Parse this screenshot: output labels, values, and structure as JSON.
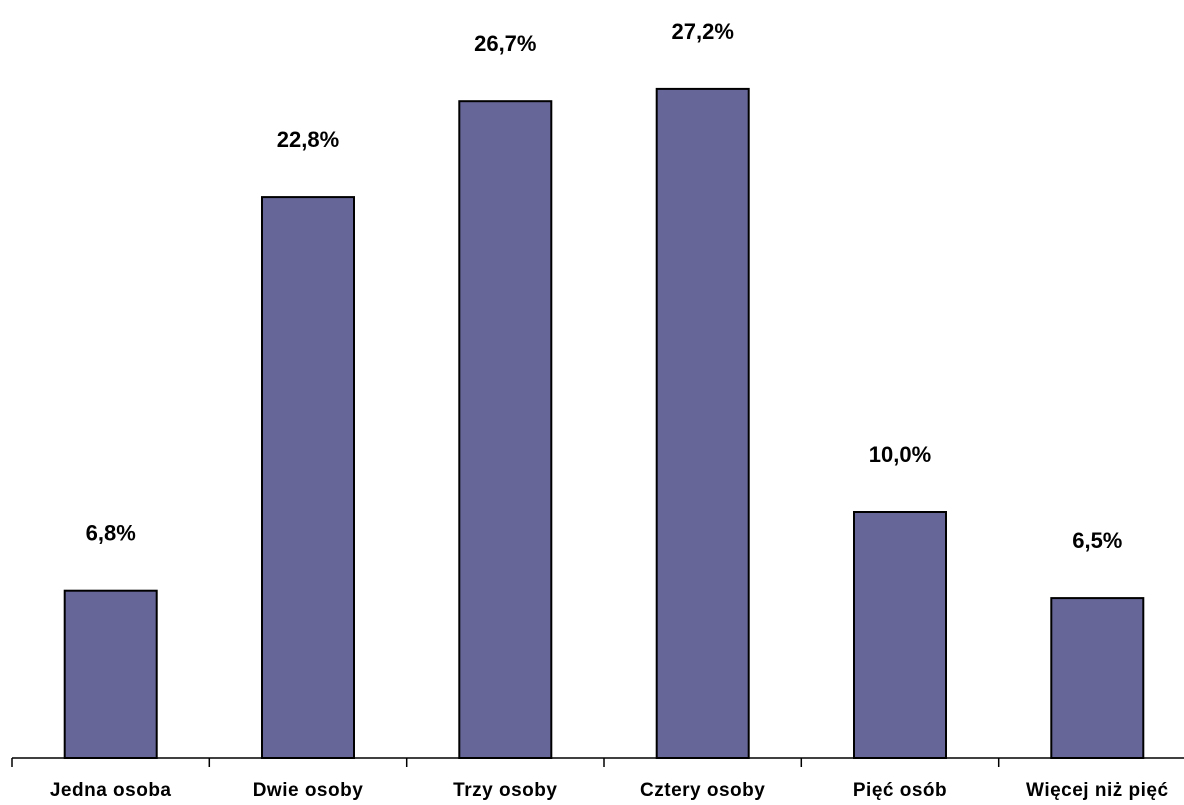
{
  "chart_data": {
    "type": "bar",
    "title": "",
    "xlabel": "",
    "ylabel": "",
    "categories": [
      "Jedna osoba",
      "Dwie osoby",
      "Trzy osoby",
      "Cztery osoby",
      "Pięć osób",
      "Więcej niż pięć"
    ],
    "values": [
      6.8,
      22.8,
      26.7,
      27.2,
      10.0,
      6.5
    ],
    "value_labels": [
      "6,8%",
      "22,8%",
      "26,7%",
      "27,2%",
      "10,0%",
      "6,5%"
    ],
    "ylim": [
      0,
      30
    ],
    "grid": false,
    "legend": "none",
    "bar_color": "#666699",
    "bar_edge_color": "#000000"
  }
}
